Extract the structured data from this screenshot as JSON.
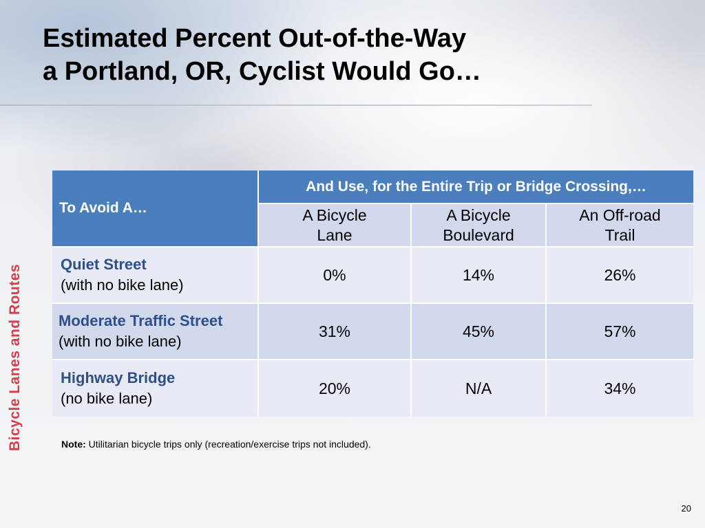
{
  "slide": {
    "title_line1": "Estimated Percent Out-of-the-Way",
    "title_line2": "a Portland, OR, Cyclist Would Go…",
    "side_label": "Bicycle Lanes and Routes",
    "page_number": "20"
  },
  "table": {
    "avoid_header": "To Avoid A…",
    "use_header": "And Use, for the Entire Trip or Bridge Crossing,…",
    "columns": [
      {
        "line1": "A Bicycle",
        "line2": "Lane"
      },
      {
        "line1": "A Bicycle",
        "line2": "Boulevard"
      },
      {
        "line1": "An Off-road",
        "line2": "Trail"
      }
    ],
    "rows": [
      {
        "label": "Quiet Street",
        "sublabel": "(with no bike lane)",
        "values": [
          "0%",
          "14%",
          "26%"
        ]
      },
      {
        "label": "Moderate Traffic Street",
        "sublabel": "(with no bike lane)",
        "values": [
          "31%",
          "45%",
          "57%"
        ]
      },
      {
        "label": "Highway Bridge",
        "sublabel": "(no bike lane)",
        "values": [
          "20%",
          "N/A",
          "34%"
        ]
      }
    ]
  },
  "note": {
    "prefix": "Note:",
    "text": " Utilitarian bicycle trips only (recreation/exercise trips not included)."
  },
  "colors": {
    "header_blue": "#4a7ebd",
    "row_light": "#e8ebf5",
    "row_dark": "#d3d9ec",
    "side_label_red": "#d63f4a",
    "row_label_blue": "#2d4f8a"
  }
}
